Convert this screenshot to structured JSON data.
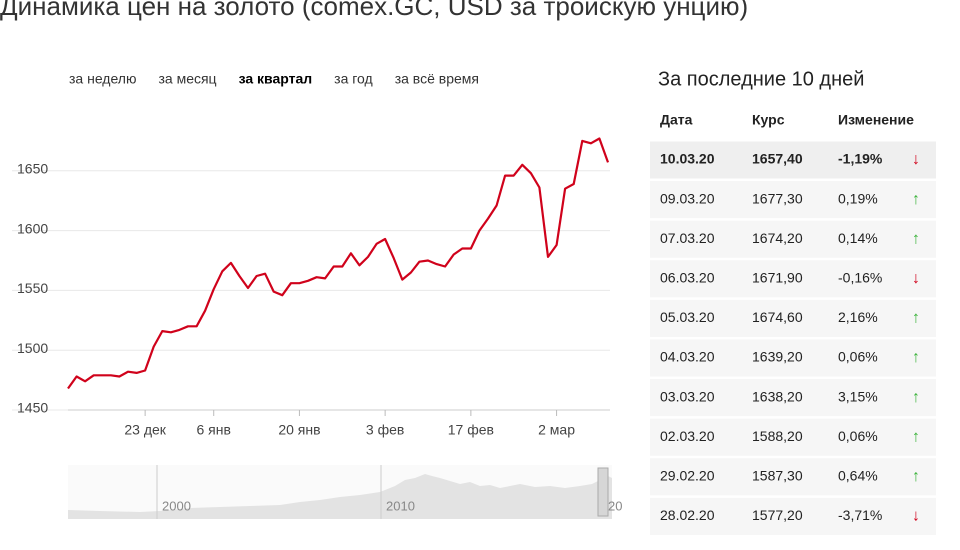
{
  "title": "Динамика цен на золото (comex.GC, USD за тройскую унцию)",
  "tabs": [
    {
      "label": "за неделю",
      "active": false
    },
    {
      "label": "за месяц",
      "active": false
    },
    {
      "label": "за квартал",
      "active": true
    },
    {
      "label": "за год",
      "active": false
    },
    {
      "label": "за всё время",
      "active": false
    }
  ],
  "chart_data": {
    "type": "line",
    "color": "#d0021b",
    "categories": [
      null,
      null,
      null,
      null,
      null,
      null,
      null,
      null,
      null,
      "23 дек",
      null,
      null,
      null,
      null,
      null,
      null,
      null,
      "6 янв",
      null,
      null,
      null,
      null,
      null,
      null,
      null,
      null,
      null,
      "20 янв",
      null,
      null,
      null,
      null,
      null,
      null,
      null,
      null,
      null,
      "3 фев",
      null,
      null,
      null,
      null,
      null,
      null,
      null,
      null,
      null,
      "17 фев",
      null,
      null,
      null,
      null,
      null,
      null,
      null,
      null,
      null,
      "2 мар",
      null,
      null,
      null,
      null,
      null,
      null
    ],
    "values": [
      1468,
      1478,
      1474,
      1479,
      1479,
      1479,
      1478,
      1482,
      1481,
      1483,
      1503,
      1516,
      1515,
      1517,
      1520,
      1520,
      1533,
      1551,
      1566,
      1573,
      1562,
      1552,
      1562,
      1564,
      1549,
      1546,
      1556,
      1556,
      1558,
      1561,
      1560,
      1570,
      1570,
      1581,
      1571,
      1578,
      1589,
      1593,
      1577,
      1559,
      1565,
      1574,
      1575,
      1572,
      1570,
      1580,
      1585,
      1585,
      1600,
      1610,
      1621,
      1646,
      1646,
      1655,
      1648,
      1636,
      1578,
      1588,
      1635,
      1639,
      1675,
      1673,
      1677,
      1657
    ],
    "ylim": [
      1450,
      1700
    ],
    "yticks": [
      1450,
      1500,
      1550,
      1600,
      1650
    ],
    "grid": true
  },
  "navigator": {
    "labels": [
      "2000",
      "2010",
      "20"
    ]
  },
  "table": {
    "title": "За последние 10 дней",
    "header": [
      "Дата",
      "Курс",
      "Изменение"
    ],
    "rows": [
      [
        "10.03.20",
        "1657,40",
        "-1,19%",
        "↓"
      ],
      [
        "09.03.20",
        "1677,30",
        "0,19%",
        "↑"
      ],
      [
        "07.03.20",
        "1674,20",
        "0,14%",
        "↑"
      ],
      [
        "06.03.20",
        "1671,90",
        "-0,16%",
        "↓"
      ],
      [
        "05.03.20",
        "1674,60",
        "2,16%",
        "↑"
      ],
      [
        "04.03.20",
        "1639,20",
        "0,06%",
        "↑"
      ],
      [
        "03.03.20",
        "1638,20",
        "3,15%",
        "↑"
      ],
      [
        "02.03.20",
        "1588,20",
        "0,06%",
        "↑"
      ],
      [
        "29.02.20",
        "1587,30",
        "0,64%",
        "↑"
      ],
      [
        "28.02.20",
        "1577,20",
        "-3,71%",
        "↓"
      ]
    ]
  }
}
